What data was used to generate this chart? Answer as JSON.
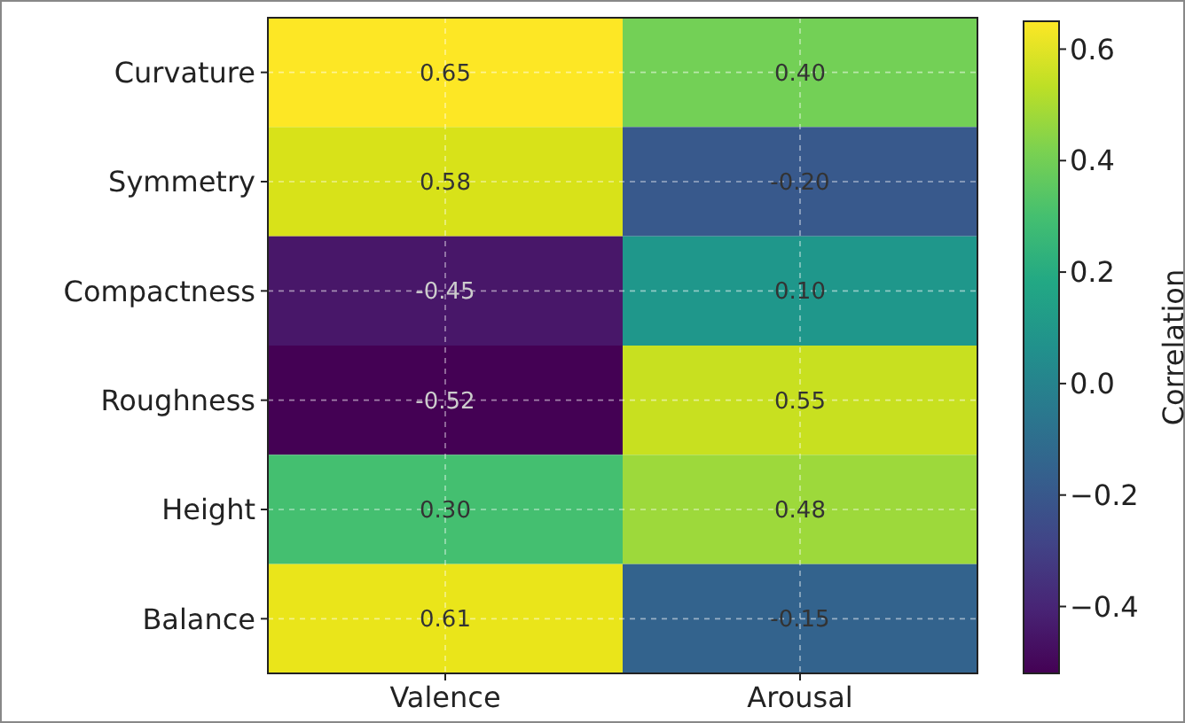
{
  "chart_data": {
    "type": "heatmap",
    "categories": [
      "Valence",
      "Arousal"
    ],
    "y_categories": [
      "Curvature",
      "Symmetry",
      "Compactness",
      "Roughness",
      "Height",
      "Balance"
    ],
    "cells": [
      [
        0.65,
        0.4
      ],
      [
        0.58,
        -0.2
      ],
      [
        -0.45,
        0.1
      ],
      [
        -0.52,
        0.55
      ],
      [
        0.3,
        0.48
      ],
      [
        0.61,
        -0.15
      ]
    ],
    "cell_labels": [
      [
        "0.65",
        "0.40"
      ],
      [
        "0.58",
        "-0.20"
      ],
      [
        "-0.45",
        "0.10"
      ],
      [
        "-0.52",
        "0.55"
      ],
      [
        "0.30",
        "0.48"
      ],
      [
        "0.61",
        "-0.15"
      ]
    ],
    "clim": [
      -0.52,
      0.65
    ],
    "cticks": [
      {
        "value": -0.4,
        "label": "−0.4"
      },
      {
        "value": -0.2,
        "label": "−0.2"
      },
      {
        "value": 0.0,
        "label": "0.0"
      },
      {
        "value": 0.2,
        "label": "0.2"
      },
      {
        "value": 0.4,
        "label": "0.4"
      },
      {
        "value": 0.6,
        "label": "0.6"
      }
    ],
    "clabel": "Correlation",
    "data_labels": true,
    "grid": true
  }
}
